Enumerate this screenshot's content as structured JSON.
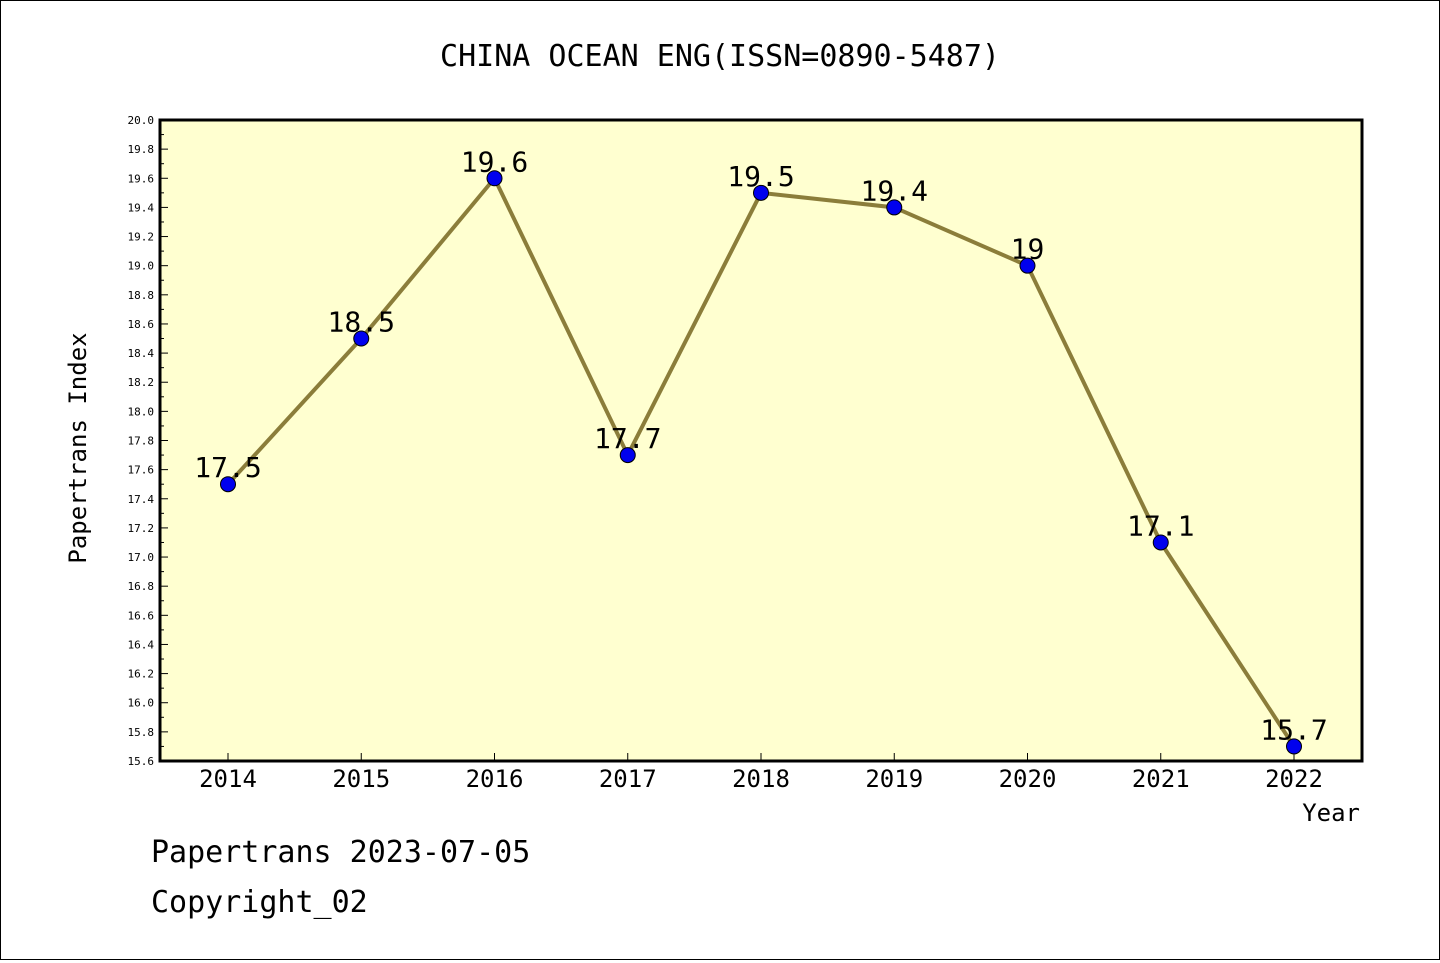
{
  "chart_data": {
    "type": "line",
    "title": "CHINA OCEAN ENG(ISSN=0890-5487)",
    "xlabel": "Year",
    "ylabel": "Papertrans Index",
    "categories": [
      "2014",
      "2015",
      "2016",
      "2017",
      "2018",
      "2019",
      "2020",
      "2021",
      "2022"
    ],
    "values": [
      17.5,
      18.5,
      19.6,
      17.7,
      19.5,
      19.4,
      19,
      17.1,
      15.7
    ],
    "data_labels": [
      "17.5",
      "18.5",
      "19.6",
      "17.7",
      "19.5",
      "19.4",
      "19",
      "17.1",
      "15.7"
    ],
    "ylim": [
      15.6,
      20.0
    ],
    "y_ticks": [
      "15.6",
      "15.8",
      "16.0",
      "16.2",
      "16.4",
      "16.6",
      "16.8",
      "17.0",
      "17.2",
      "17.4",
      "17.6",
      "17.8",
      "18.0",
      "18.2",
      "18.4",
      "18.6",
      "18.8",
      "19.0",
      "19.2",
      "19.4",
      "19.6",
      "19.8",
      "20.0"
    ],
    "grid": false,
    "legend": "none",
    "colors": {
      "plot_background": "#ffffd0",
      "line": "#8b7d3a",
      "marker": "#0000ee"
    }
  },
  "footer": {
    "date_text": "Papertrans 2023-07-05",
    "copyright_text": "Copyright_02"
  }
}
